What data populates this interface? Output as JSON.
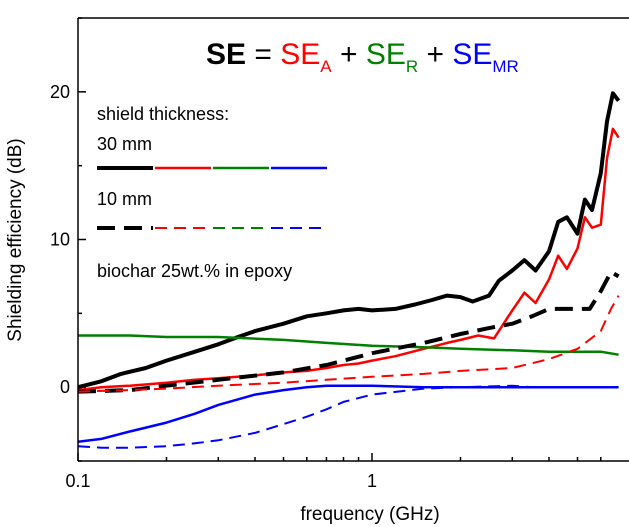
{
  "chart_data": {
    "type": "line",
    "title": "",
    "xlabel": "frequency (GHz)",
    "ylabel": "Shielding efficiency  (dB)",
    "xscale": "log",
    "xlim": [
      0.1,
      6.9
    ],
    "ylim": [
      -5,
      25
    ],
    "xticks": [
      0.1,
      1
    ],
    "xtick_labels": [
      "0.1",
      "1"
    ],
    "yticks": [
      0,
      10,
      20
    ],
    "ytick_labels": [
      "0",
      "10",
      "20"
    ],
    "grid": false,
    "colors": {
      "black": "#000000",
      "red": "#ff0000",
      "green": "#008000",
      "blue": "#0000ff"
    },
    "formula": {
      "se": "SE",
      "eq": " = ",
      "plus": " + ",
      "se_a": "SE",
      "sub_a": "A",
      "se_r": "SE",
      "sub_r": "R",
      "se_mr": "SE",
      "sub_mr": "MR"
    },
    "annotations": {
      "thickness_label": "shield thickness:",
      "thick30_label": "30 mm",
      "thick10_label": "10 mm",
      "material_label": "biochar 25wt.% in epoxy"
    },
    "legend_placement": "top-left",
    "series": [
      {
        "component": "SE",
        "thickness": "30 mm",
        "color": "#000000",
        "dash": "solid",
        "x": [
          0.1,
          0.12,
          0.14,
          0.17,
          0.2,
          0.25,
          0.3,
          0.35,
          0.4,
          0.5,
          0.6,
          0.7,
          0.8,
          0.9,
          1.0,
          1.2,
          1.4,
          1.6,
          1.8,
          2.0,
          2.2,
          2.5,
          2.7,
          3.0,
          3.3,
          3.6,
          4.0,
          4.3,
          4.6,
          5.0,
          5.3,
          5.6,
          6.0,
          6.3,
          6.6,
          6.9
        ],
        "y": [
          0.0,
          0.4,
          0.9,
          1.3,
          1.8,
          2.4,
          2.9,
          3.4,
          3.8,
          4.3,
          4.8,
          5.0,
          5.2,
          5.3,
          5.2,
          5.3,
          5.6,
          5.9,
          6.2,
          6.1,
          5.8,
          6.2,
          7.2,
          7.9,
          8.6,
          7.9,
          9.2,
          11.2,
          11.5,
          10.4,
          12.7,
          12.0,
          14.5,
          18.0,
          19.9,
          19.4
        ]
      },
      {
        "component": "SE_A",
        "thickness": "30 mm",
        "color": "#ff0000",
        "dash": "solid",
        "x": [
          0.1,
          0.12,
          0.15,
          0.2,
          0.25,
          0.3,
          0.4,
          0.5,
          0.6,
          0.7,
          0.8,
          0.9,
          1.0,
          1.2,
          1.5,
          1.8,
          2.0,
          2.3,
          2.6,
          3.0,
          3.3,
          3.6,
          4.0,
          4.3,
          4.6,
          5.0,
          5.3,
          5.6,
          6.0,
          6.3,
          6.6,
          6.9
        ],
        "y": [
          -0.2,
          0.0,
          0.1,
          0.3,
          0.5,
          0.6,
          0.8,
          1.0,
          1.1,
          1.3,
          1.5,
          1.6,
          1.8,
          2.1,
          2.6,
          3.0,
          3.2,
          3.5,
          3.3,
          5.2,
          6.4,
          5.7,
          7.3,
          8.9,
          8.0,
          9.4,
          11.5,
          10.8,
          11.0,
          15.5,
          17.5,
          16.9
        ]
      },
      {
        "component": "SE_R",
        "thickness": "30 mm",
        "color": "#008000",
        "dash": "solid",
        "x": [
          0.1,
          0.15,
          0.2,
          0.3,
          0.5,
          0.7,
          1.0,
          1.5,
          2.0,
          3.0,
          4.0,
          5.0,
          6.0,
          6.9
        ],
        "y": [
          3.5,
          3.5,
          3.4,
          3.4,
          3.2,
          3.0,
          2.8,
          2.7,
          2.6,
          2.5,
          2.4,
          2.4,
          2.4,
          2.2
        ]
      },
      {
        "component": "SE_MR",
        "thickness": "30 mm",
        "color": "#0000ff",
        "dash": "solid",
        "x": [
          0.1,
          0.12,
          0.15,
          0.2,
          0.25,
          0.3,
          0.4,
          0.5,
          0.6,
          0.7,
          0.8,
          1.0,
          1.5,
          2.0,
          3.0,
          6.9
        ],
        "y": [
          -3.7,
          -3.5,
          -3.0,
          -2.4,
          -1.8,
          -1.2,
          -0.5,
          -0.2,
          0.0,
          0.1,
          0.1,
          0.1,
          0.0,
          0.0,
          0.0,
          0.0
        ]
      },
      {
        "component": "SE",
        "thickness": "10 mm",
        "color": "#000000",
        "dash": "dashed",
        "x": [
          0.1,
          0.15,
          0.2,
          0.3,
          0.5,
          0.7,
          1.0,
          1.5,
          2.0,
          2.5,
          3.0,
          3.5,
          4.0,
          5.0,
          5.5,
          6.0,
          6.5,
          6.9
        ],
        "y": [
          -0.3,
          -0.2,
          0.1,
          0.5,
          1.0,
          1.5,
          2.3,
          3.0,
          3.6,
          4.0,
          4.3,
          4.8,
          5.3,
          5.3,
          5.3,
          6.5,
          7.8,
          7.5
        ]
      },
      {
        "component": "SE_A",
        "thickness": "10 mm",
        "color": "#ff0000",
        "dash": "dashed",
        "x": [
          0.1,
          0.15,
          0.2,
          0.3,
          0.5,
          0.7,
          1.0,
          1.5,
          2.0,
          3.0,
          4.0,
          5.0,
          6.0,
          6.5,
          6.9
        ],
        "y": [
          -0.3,
          -0.2,
          -0.1,
          0.1,
          0.3,
          0.5,
          0.7,
          0.9,
          1.1,
          1.3,
          1.9,
          2.6,
          3.8,
          5.3,
          6.2
        ]
      },
      {
        "component": "SE_MR",
        "thickness": "10 mm",
        "color": "#0000ff",
        "dash": "dashed",
        "x": [
          0.1,
          0.12,
          0.15,
          0.2,
          0.25,
          0.3,
          0.4,
          0.5,
          0.6,
          0.7,
          0.8,
          1.0,
          1.5,
          2.0,
          2.5,
          3.0,
          3.5,
          4.0,
          6.9
        ],
        "y": [
          -4.0,
          -4.1,
          -4.1,
          -4.0,
          -3.8,
          -3.6,
          -3.1,
          -2.5,
          -2.0,
          -1.5,
          -1.0,
          -0.5,
          -0.1,
          0.0,
          0.05,
          0.1,
          0.0,
          0.0,
          0.0
        ]
      }
    ]
  }
}
